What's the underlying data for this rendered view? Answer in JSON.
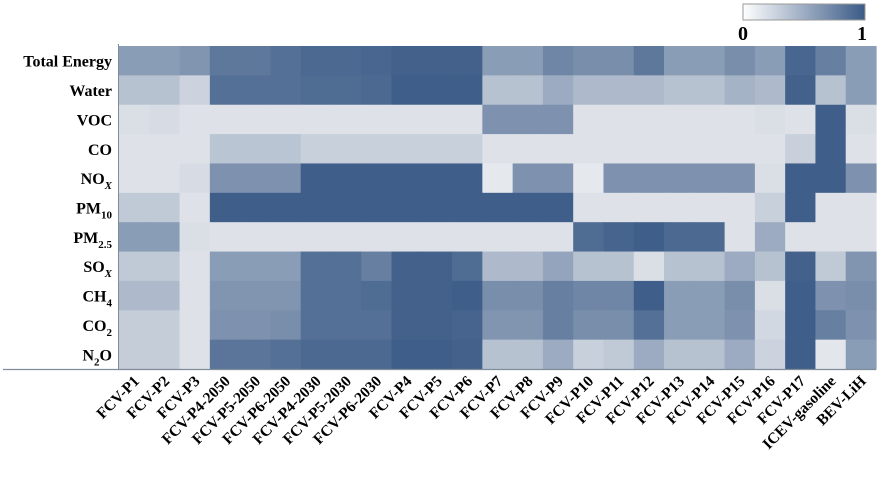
{
  "chart_data": {
    "type": "heatmap",
    "title": "",
    "xlabel": "",
    "ylabel": "",
    "colorbar": {
      "min_label": "0",
      "max_label": "1",
      "range": [
        0,
        1
      ],
      "low_color": "#ffffff",
      "high_color": "#3a5a86"
    },
    "rows": [
      {
        "label": "Total Energy",
        "main": "Total Energy",
        "sub": ""
      },
      {
        "label": "Water",
        "main": "Water",
        "sub": ""
      },
      {
        "label": "VOC",
        "main": "VOC",
        "sub": ""
      },
      {
        "label": "CO",
        "main": "CO",
        "sub": ""
      },
      {
        "label": "NOX",
        "main": "NO",
        "sub": "X"
      },
      {
        "label": "PM10",
        "main": "PM",
        "sub": "10"
      },
      {
        "label": "PM2.5",
        "main": "PM",
        "sub": "2.5"
      },
      {
        "label": "SOX",
        "main": "SO",
        "sub": "X"
      },
      {
        "label": "CH4",
        "main": "CH",
        "sub": "4"
      },
      {
        "label": "CO2",
        "main": "CO",
        "sub": "2"
      },
      {
        "label": "N2O",
        "main": "N",
        "sub": "2",
        "tail": "O"
      }
    ],
    "columns": [
      "FCV-P1",
      "FCV-P2",
      "FCV-P3",
      "FCV-P4-2050",
      "FCV-P5-2050",
      "FCV-P6-2050",
      "FCV-P4-2030",
      "FCV-P5-2030",
      "FCV-P6-2030",
      "FCV-P4",
      "FCV-P5",
      "FCV-P6",
      "FCV-P7",
      "FCV-P8",
      "FCV-P9",
      "FCV-P10",
      "FCV-P11",
      "FCV-P12",
      "FCV-P13",
      "FCV-P14",
      "FCV-P15",
      "FCV-P16",
      "FCV-P17",
      "ICEV-gasoline",
      "BEV-LiH"
    ],
    "values": [
      [
        0.55,
        0.55,
        0.6,
        0.8,
        0.8,
        0.85,
        0.9,
        0.9,
        0.92,
        0.95,
        0.95,
        0.95,
        0.55,
        0.55,
        0.7,
        0.65,
        0.65,
        0.8,
        0.55,
        0.55,
        0.65,
        0.55,
        0.92,
        0.75,
        0.55
      ],
      [
        0.3,
        0.3,
        0.18,
        0.85,
        0.85,
        0.85,
        0.88,
        0.88,
        0.9,
        0.97,
        0.97,
        0.97,
        0.3,
        0.3,
        0.45,
        0.35,
        0.35,
        0.35,
        0.3,
        0.3,
        0.4,
        0.35,
        0.95,
        0.3,
        0.55
      ],
      [
        0.1,
        0.12,
        0.08,
        0.08,
        0.08,
        0.08,
        0.08,
        0.08,
        0.08,
        0.08,
        0.08,
        0.08,
        0.62,
        0.62,
        0.62,
        0.08,
        0.08,
        0.08,
        0.08,
        0.08,
        0.08,
        0.1,
        0.08,
        0.97,
        0.1
      ],
      [
        0.08,
        0.08,
        0.08,
        0.28,
        0.28,
        0.28,
        0.2,
        0.2,
        0.2,
        0.2,
        0.2,
        0.2,
        0.08,
        0.08,
        0.08,
        0.08,
        0.08,
        0.08,
        0.08,
        0.08,
        0.08,
        0.08,
        0.2,
        0.97,
        0.08
      ],
      [
        0.08,
        0.08,
        0.12,
        0.62,
        0.62,
        0.62,
        0.97,
        0.97,
        0.97,
        0.97,
        0.97,
        0.97,
        0.04,
        0.62,
        0.62,
        0.04,
        0.62,
        0.62,
        0.62,
        0.62,
        0.62,
        0.1,
        0.97,
        0.97,
        0.62
      ],
      [
        0.25,
        0.25,
        0.08,
        0.97,
        0.97,
        0.97,
        0.97,
        0.97,
        0.97,
        0.97,
        0.97,
        0.97,
        0.97,
        0.97,
        0.97,
        0.08,
        0.08,
        0.08,
        0.08,
        0.08,
        0.08,
        0.2,
        0.97,
        0.08,
        0.08
      ],
      [
        0.55,
        0.55,
        0.1,
        0.08,
        0.08,
        0.08,
        0.08,
        0.08,
        0.08,
        0.08,
        0.08,
        0.08,
        0.08,
        0.08,
        0.08,
        0.88,
        0.93,
        0.97,
        0.9,
        0.9,
        0.08,
        0.45,
        0.08,
        0.08,
        0.08
      ],
      [
        0.25,
        0.25,
        0.08,
        0.55,
        0.55,
        0.55,
        0.85,
        0.85,
        0.75,
        0.95,
        0.95,
        0.88,
        0.35,
        0.35,
        0.5,
        0.3,
        0.3,
        0.1,
        0.3,
        0.3,
        0.45,
        0.3,
        0.95,
        0.25,
        0.6
      ],
      [
        0.35,
        0.35,
        0.08,
        0.6,
        0.6,
        0.6,
        0.85,
        0.85,
        0.88,
        0.95,
        0.95,
        0.97,
        0.65,
        0.65,
        0.75,
        0.7,
        0.7,
        0.97,
        0.55,
        0.55,
        0.65,
        0.1,
        0.97,
        0.62,
        0.65
      ],
      [
        0.22,
        0.22,
        0.08,
        0.62,
        0.62,
        0.65,
        0.85,
        0.85,
        0.85,
        0.95,
        0.95,
        0.93,
        0.6,
        0.6,
        0.75,
        0.65,
        0.65,
        0.85,
        0.55,
        0.55,
        0.62,
        0.15,
        0.97,
        0.75,
        0.62
      ],
      [
        0.22,
        0.22,
        0.08,
        0.82,
        0.82,
        0.85,
        0.9,
        0.9,
        0.9,
        0.97,
        0.97,
        0.95,
        0.3,
        0.3,
        0.45,
        0.2,
        0.25,
        0.45,
        0.3,
        0.3,
        0.45,
        0.18,
        0.97,
        0.05,
        0.55
      ]
    ]
  }
}
